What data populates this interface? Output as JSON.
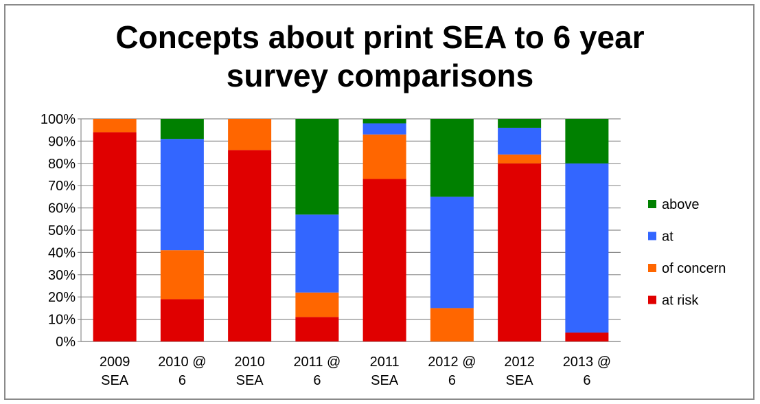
{
  "chart_data": {
    "type": "bar",
    "stacked": true,
    "title": [
      "Concepts about print SEA to 6 year",
      "survey comparisons"
    ],
    "categories": [
      [
        "2009",
        "SEA"
      ],
      [
        "2010 @",
        "6"
      ],
      [
        "2010",
        "SEA"
      ],
      [
        "2011 @",
        "6"
      ],
      [
        "2011",
        "SEA"
      ],
      [
        "2012 @",
        "6"
      ],
      [
        "2012",
        "SEA"
      ],
      [
        "2013 @",
        "6"
      ]
    ],
    "ylim": [
      0,
      100
    ],
    "y_ticks": [
      "0%",
      "10%",
      "20%",
      "30%",
      "40%",
      "50%",
      "60%",
      "70%",
      "80%",
      "90%",
      "100%"
    ],
    "grid": true,
    "legend_position": "right",
    "series": [
      {
        "name": "at risk",
        "color": "#e00000",
        "values": [
          94,
          19,
          86,
          11,
          73,
          0,
          80,
          4
        ]
      },
      {
        "name": "of concern",
        "color": "#ff6600",
        "values": [
          6,
          22,
          14,
          11,
          20,
          15,
          4,
          0
        ]
      },
      {
        "name": "at",
        "color": "#3366ff",
        "values": [
          0,
          50,
          0,
          35,
          5,
          50,
          12,
          76
        ]
      },
      {
        "name": "above",
        "color": "#008000",
        "values": [
          0,
          9,
          0,
          43,
          2,
          35,
          4,
          20
        ]
      }
    ],
    "legend_order": [
      "above",
      "at",
      "of concern",
      "at risk"
    ]
  }
}
